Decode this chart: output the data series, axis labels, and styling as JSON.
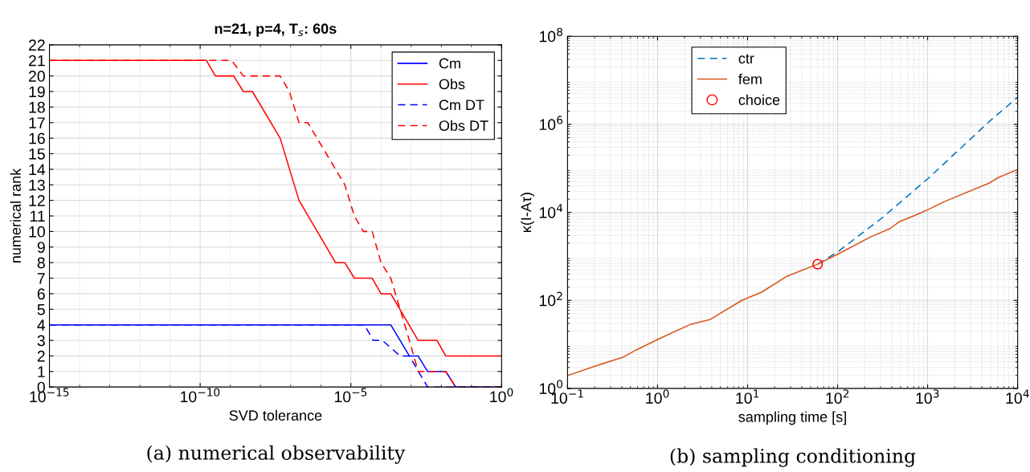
{
  "chart_data": [
    {
      "type": "line",
      "title": "n=21, p=4, T$_{s}$: 60s",
      "xlabel": "SVD tolerance",
      "ylabel": "numerical rank",
      "log": "x",
      "grid": true,
      "legend": "top right",
      "xlim": [
        1e-15,
        1
      ],
      "ylim": [
        0,
        22
      ],
      "xticks": [
        {
          "value": 1e-15,
          "label": "10$^{−15}$"
        },
        {
          "value": 1e-14,
          "label": null
        },
        {
          "value": 1e-13,
          "label": null
        },
        {
          "value": 1e-12,
          "label": null
        },
        {
          "value": 1e-11,
          "label": null
        },
        {
          "value": 1e-10,
          "label": "10$^{−10}$"
        },
        {
          "value": 1e-09,
          "label": null
        },
        {
          "value": 1e-08,
          "label": null
        },
        {
          "value": 1e-07,
          "label": null
        },
        {
          "value": 1e-06,
          "label": null
        },
        {
          "value": 1e-05,
          "label": "10$^{−5}$"
        },
        {
          "value": 0.0001,
          "label": null
        },
        {
          "value": 0.001,
          "label": null
        },
        {
          "value": 0.01,
          "label": null
        },
        {
          "value": 0.1,
          "label": null
        },
        {
          "value": 1,
          "label": "10$^{0}$"
        }
      ],
      "yticks": [
        0,
        1,
        2,
        3,
        4,
        5,
        6,
        7,
        8,
        9,
        10,
        11,
        12,
        13,
        14,
        15,
        16,
        17,
        18,
        19,
        20,
        21,
        22
      ],
      "annotations": [
        "(a) numerical observability"
      ],
      "series": [
        {
          "name": "Cm",
          "color": "#0000ff",
          "line_style": "solid",
          "x": [
            1e-15,
            0.00021,
            0.00087,
            0.0017,
            0.0035,
            0.014,
            0.03,
            1
          ],
          "values": [
            4,
            4,
            2,
            2,
            1,
            1,
            0,
            0
          ]
        },
        {
          "name": "Obs",
          "color": "#ff0000",
          "line_style": "solid",
          "x": [
            1e-15,
            1.6e-10,
            3.2e-10,
            1.3e-09,
            2.7e-09,
            5.4e-09,
            4.5e-08,
            1.9e-07,
            3.1e-06,
            6.3e-06,
            1.3e-05,
            5.1e-05,
            0.0001,
            0.00021,
            0.0017,
            0.0072,
            0.014,
            1
          ],
          "values": [
            21,
            21,
            20,
            20,
            19,
            19,
            16,
            12,
            8,
            8,
            7,
            7,
            6,
            6,
            3,
            3,
            2,
            2
          ]
        },
        {
          "name": "Cm DT",
          "color": "#0000ff",
          "line_style": "dashed",
          "x": [
            1e-15,
            2.8e-05,
            5.5e-05,
            0.00011,
            0.00043,
            0.00087,
            0.0035,
            1
          ],
          "values": [
            4,
            4,
            3,
            3,
            2,
            2,
            0,
            0
          ]
        },
        {
          "name": "Obs DT",
          "color": "#ff0000",
          "line_style": "dashed",
          "x": [
            1e-15,
            1.1e-09,
            2.7e-09,
            4.5e-08,
            9.1e-08,
            1.9e-07,
            3.7e-07,
            6.3e-06,
            1.3e-05,
            2.6e-05,
            5.1e-05,
            0.0001,
            0.00021,
            0.00043,
            0.00087,
            0.0017,
            0.0035,
            0.014,
            0.03,
            1
          ],
          "values": [
            21,
            21,
            20,
            20,
            19,
            17,
            17,
            13,
            11,
            10,
            10,
            8,
            7,
            5,
            3,
            1,
            1,
            1,
            0,
            0
          ]
        }
      ]
    },
    {
      "type": "line",
      "xlabel": "sampling time [s]",
      "ylabel": "κ(I-Aτ)",
      "log": "xy",
      "grid": true,
      "legend": "top left",
      "xlim": [
        0.1,
        10000
      ],
      "ylim": [
        1,
        100000000
      ],
      "xticks": [
        {
          "value": 0.1,
          "label": "10$^{−1}$"
        },
        {
          "value": 1,
          "label": "10$^{0}$"
        },
        {
          "value": 10,
          "label": "10$^{1}$"
        },
        {
          "value": 100,
          "label": "10$^{2}$"
        },
        {
          "value": 1000,
          "label": "10$^{3}$"
        },
        {
          "value": 10000,
          "label": "10$^{4}$"
        }
      ],
      "yticks": [
        {
          "value": 1,
          "label": "10$^{0}$"
        },
        {
          "value": 100,
          "label": "10$^{2}$"
        },
        {
          "value": 10000,
          "label": "10$^{4}$"
        },
        {
          "value": 1000000,
          "label": "10$^{6}$"
        },
        {
          "value": 100000000,
          "label": "10$^{8}$"
        }
      ],
      "annotations": [
        "(b) sampling conditioning"
      ],
      "series": [
        {
          "name": "ctr",
          "color": "#0072bd",
          "line_style": "dashed",
          "x": [
            60,
            103,
            324,
            1020,
            4860,
            10000
          ],
          "values": [
            665,
            1320,
            7980,
            59800,
            1170000,
            4130000
          ]
        },
        {
          "name": "fem",
          "color": "#d95319",
          "line_style": "solid",
          "x": [
            0.1,
            0.201,
            0.42,
            0.58,
            1.04,
            2.35,
            3.85,
            8.7,
            14.3,
            27.6,
            60,
            103,
            233,
            382,
            489,
            736,
            1020,
            1540,
            4860,
            6210,
            10000
          ],
          "values": [
            1.96,
            3.2,
            5.2,
            7.5,
            13.5,
            28.8,
            37,
            101,
            154,
            357,
            665,
            1157,
            2770,
            4290,
            6210,
            8690,
            11700,
            17600,
            46600,
            63000,
            94200
          ]
        },
        {
          "name": "choice",
          "type": "scatter",
          "color": "#ff0000",
          "marker": "circle",
          "x": [
            60
          ],
          "values": [
            665
          ]
        }
      ]
    }
  ]
}
